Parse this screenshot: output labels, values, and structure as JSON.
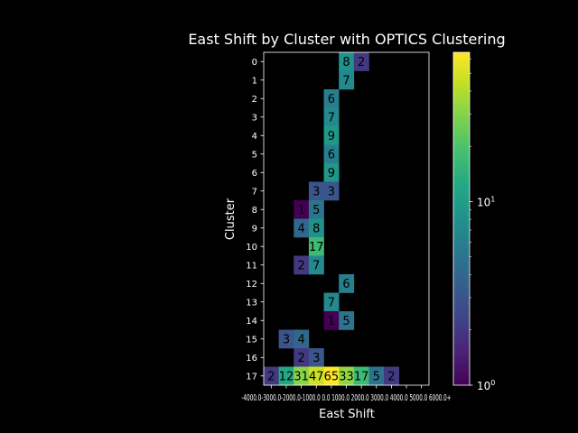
{
  "chart_data": {
    "type": "heatmap",
    "title": "East Shift by Cluster with OPTICS Clustering",
    "xlabel": "East Shift",
    "ylabel": "Cluster",
    "x_categories": [
      "-4000.0",
      "-3000.0",
      "-2000.0",
      "-1000.0",
      "0.0",
      "1000.0",
      "2000.0",
      "3000.0",
      "4000.0",
      "5000.0",
      "6000.0+"
    ],
    "x_tick_text": "-4000.0-3000.0-2000.0-1000.0 0.0 1000.0 2000.0 3000.0 4000.0 5000.0 6000.0+",
    "y_categories": [
      "0",
      "1",
      "2",
      "3",
      "4",
      "5",
      "6",
      "7",
      "8",
      "9",
      "10",
      "11",
      "12",
      "13",
      "14",
      "15",
      "16",
      "17"
    ],
    "cells": [
      {
        "row": 0,
        "col": 5,
        "value": 8
      },
      {
        "row": 0,
        "col": 6,
        "value": 2
      },
      {
        "row": 1,
        "col": 5,
        "value": 7
      },
      {
        "row": 2,
        "col": 4,
        "value": 6
      },
      {
        "row": 3,
        "col": 4,
        "value": 7
      },
      {
        "row": 4,
        "col": 4,
        "value": 9
      },
      {
        "row": 5,
        "col": 4,
        "value": 6
      },
      {
        "row": 6,
        "col": 4,
        "value": 9
      },
      {
        "row": 7,
        "col": 3,
        "value": 3
      },
      {
        "row": 7,
        "col": 4,
        "value": 3
      },
      {
        "row": 8,
        "col": 2,
        "value": 1
      },
      {
        "row": 8,
        "col": 3,
        "value": 5
      },
      {
        "row": 9,
        "col": 2,
        "value": 4
      },
      {
        "row": 9,
        "col": 3,
        "value": 8
      },
      {
        "row": 10,
        "col": 3,
        "value": 17
      },
      {
        "row": 11,
        "col": 2,
        "value": 2
      },
      {
        "row": 11,
        "col": 3,
        "value": 7
      },
      {
        "row": 12,
        "col": 5,
        "value": 6
      },
      {
        "row": 13,
        "col": 4,
        "value": 7
      },
      {
        "row": 14,
        "col": 4,
        "value": 1
      },
      {
        "row": 14,
        "col": 5,
        "value": 5
      },
      {
        "row": 15,
        "col": 1,
        "value": 3
      },
      {
        "row": 15,
        "col": 2,
        "value": 4
      },
      {
        "row": 16,
        "col": 2,
        "value": 2
      },
      {
        "row": 16,
        "col": 3,
        "value": 3
      },
      {
        "row": 17,
        "col": 0,
        "value": 2
      },
      {
        "row": 17,
        "col": 1,
        "value": 12
      },
      {
        "row": 17,
        "col": 2,
        "value": 31
      },
      {
        "row": 17,
        "col": 3,
        "value": 47
      },
      {
        "row": 17,
        "col": 4,
        "value": 65
      },
      {
        "row": 17,
        "col": 5,
        "value": 33
      },
      {
        "row": 17,
        "col": 6,
        "value": 17
      },
      {
        "row": 17,
        "col": 7,
        "value": 5
      },
      {
        "row": 17,
        "col": 8,
        "value": 2
      }
    ],
    "colorbar": {
      "scale": "log",
      "colormap": "viridis",
      "min": 1,
      "max": 65,
      "tick_labels": [
        "10^0",
        "10^1"
      ]
    },
    "grid": false,
    "background": "#000000",
    "text_color": "#ffffff"
  }
}
